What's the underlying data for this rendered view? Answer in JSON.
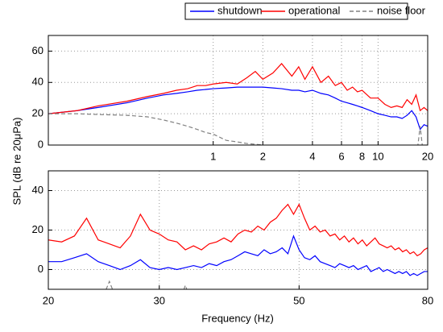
{
  "chart_data": [
    {
      "type": "line",
      "ylabel": "SPL (dB re 20μPa)",
      "xscale": "log",
      "grid": true,
      "xlim": [
        0.1,
        20
      ],
      "ylim": [
        0,
        70
      ],
      "xticks": [
        1,
        2,
        4,
        6,
        8,
        10,
        20
      ],
      "yticks": [
        0,
        20,
        40,
        60
      ],
      "legend": "top",
      "x": [
        0.1,
        0.15,
        0.2,
        0.3,
        0.4,
        0.5,
        0.6,
        0.7,
        0.8,
        0.9,
        1,
        1.2,
        1.4,
        1.6,
        1.8,
        2,
        2.3,
        2.6,
        3,
        3.3,
        3.6,
        4,
        4.5,
        5,
        5.5,
        6,
        6.5,
        7,
        7.5,
        8,
        9,
        10,
        11,
        12,
        13,
        14,
        15,
        16,
        17,
        18,
        19,
        20
      ],
      "series": [
        {
          "name": "shutdown",
          "color": "#0000ff",
          "values": [
            20,
            22,
            24,
            27,
            30,
            32,
            33,
            34,
            35,
            35.5,
            36,
            36.5,
            37,
            37,
            37,
            37,
            36.5,
            36,
            35,
            35,
            34,
            35,
            33,
            32,
            30,
            28,
            27,
            26,
            25,
            24,
            22,
            20,
            19,
            18,
            18,
            17,
            19,
            22,
            18,
            10,
            13,
            12
          ]
        },
        {
          "name": "operational",
          "color": "#ff0000",
          "values": [
            20,
            22,
            25,
            28,
            31,
            33,
            35,
            36,
            38,
            38,
            39,
            40,
            39,
            43,
            47,
            42,
            46,
            52,
            44,
            50,
            42,
            50,
            40,
            44,
            38,
            40,
            35,
            37,
            34,
            35,
            30,
            30,
            26,
            24,
            25,
            24,
            29,
            26,
            32,
            22,
            24,
            22
          ]
        },
        {
          "name": "noise floor",
          "color": "#808080",
          "dashed": true,
          "values": [
            20,
            20,
            19.5,
            19,
            18,
            16,
            14,
            12,
            10,
            8,
            7,
            3,
            2,
            1,
            0.5,
            0,
            -1,
            -2,
            -3,
            -4,
            -5,
            -6,
            -7,
            -8,
            -9,
            -10,
            -10,
            -10,
            -10,
            -10,
            -10,
            -10,
            -10,
            -10,
            -10,
            -10,
            -10,
            -10,
            -10,
            12,
            -10,
            -10
          ]
        }
      ]
    },
    {
      "type": "line",
      "xlabel": "Frequency (Hz)",
      "xscale": "log",
      "grid": true,
      "xlim": [
        20,
        80
      ],
      "ylim": [
        -10,
        50
      ],
      "xticks": [
        20,
        30,
        50,
        80
      ],
      "yticks": [
        0,
        20,
        40
      ],
      "x": [
        20,
        21,
        22,
        23,
        24,
        25,
        26,
        27,
        28,
        29,
        30,
        31,
        32,
        33,
        34,
        35,
        36,
        37,
        38,
        39,
        40,
        41,
        42,
        43,
        44,
        45,
        46,
        47,
        48,
        49,
        50,
        51,
        52,
        53,
        54,
        55,
        56,
        57,
        58,
        59,
        60,
        61,
        62,
        63,
        64,
        65,
        66,
        67,
        68,
        69,
        70,
        71,
        72,
        73,
        74,
        75,
        76,
        77,
        78,
        79,
        80
      ],
      "series": [
        {
          "name": "shutdown",
          "color": "#0000ff",
          "values": [
            4,
            4,
            6,
            8,
            4,
            2,
            0,
            2,
            5,
            1,
            0,
            1,
            0,
            1,
            2,
            1,
            3,
            2,
            4,
            5,
            7,
            9,
            8,
            7,
            10,
            8,
            9,
            11,
            8,
            17,
            10,
            6,
            5,
            7,
            4,
            3,
            2,
            1,
            3,
            2,
            1,
            2,
            0,
            1,
            2,
            -1,
            0,
            1,
            -1,
            0,
            -1,
            -2,
            -1,
            -2,
            -1,
            -3,
            -2,
            -3,
            -2,
            -1,
            -1
          ]
        },
        {
          "name": "operational",
          "color": "#ff0000",
          "values": [
            15,
            14,
            17,
            26,
            15,
            13,
            11,
            17,
            28,
            20,
            18,
            15,
            14,
            10,
            12,
            10,
            13,
            14,
            16,
            14,
            18,
            20,
            19,
            22,
            20,
            24,
            26,
            30,
            33,
            28,
            33,
            26,
            20,
            22,
            19,
            20,
            17,
            18,
            15,
            17,
            14,
            16,
            13,
            15,
            12,
            14,
            16,
            13,
            12,
            11,
            12,
            10,
            11,
            9,
            10,
            8,
            9,
            7,
            8,
            10,
            11
          ]
        },
        {
          "name": "noise floor",
          "color": "#808080",
          "dashed": true,
          "values": [
            -20,
            -20,
            -20,
            -20,
            -20,
            -6,
            -20,
            -20,
            -20,
            -20,
            -20,
            -20,
            -20,
            -8,
            -20,
            -20,
            -20,
            -20,
            -20,
            -20,
            -20,
            -20,
            -20,
            -20,
            -20,
            -20,
            -20,
            -20,
            -20,
            -20,
            -20,
            -20,
            -20,
            -20,
            -20,
            -20,
            -20,
            -20,
            -20,
            -20,
            -20,
            -20,
            -20,
            -20,
            -20,
            -20,
            -20,
            -20,
            -20,
            -20,
            -20,
            -20,
            -20,
            -20,
            -20,
            -20,
            -20,
            -20,
            -20,
            -20,
            -20
          ]
        }
      ]
    }
  ]
}
